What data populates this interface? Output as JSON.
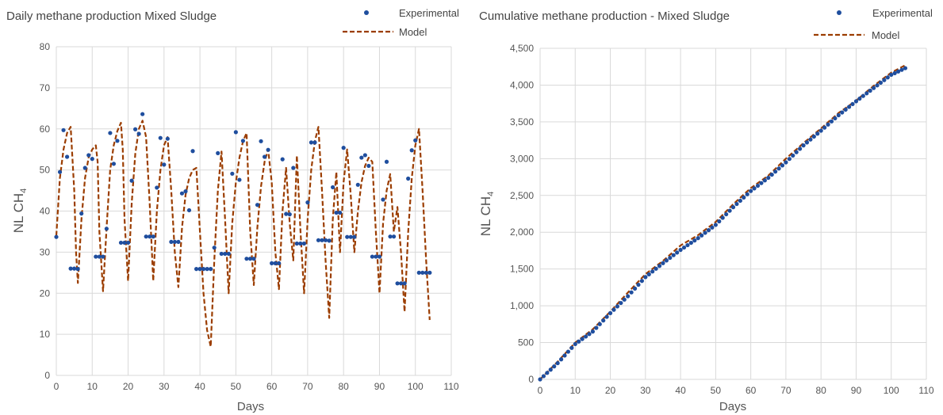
{
  "chart_data": [
    {
      "type": "scatter",
      "title": "Daily methane production Mixed Sludge",
      "xlabel": "Days",
      "ylabel": "NL CH",
      "ylabel_sub": "4",
      "xlim": [
        0,
        110
      ],
      "ylim": [
        0,
        80
      ],
      "xticks": [
        "0",
        "10",
        "20",
        "30",
        "40",
        "50",
        "60",
        "70",
        "80",
        "90",
        "100",
        "110"
      ],
      "yticks": [
        "0",
        "10",
        "20",
        "30",
        "40",
        "50",
        "60",
        "70",
        "80"
      ],
      "grid": true,
      "legend": "top-right",
      "series": [
        {
          "name": "Experimental",
          "kind": "points",
          "color": "#1f4e9e",
          "points": [
            [
              0,
              33.7
            ],
            [
              1,
              49.5
            ],
            [
              2,
              59.7
            ],
            [
              3,
              53.2
            ],
            [
              4,
              26.0
            ],
            [
              5,
              26.0
            ],
            [
              6,
              25.9
            ],
            [
              7,
              39.4
            ],
            [
              8,
              50.5
            ],
            [
              9,
              53.6
            ],
            [
              10,
              52.7
            ],
            [
              11,
              28.9
            ],
            [
              12,
              28.9
            ],
            [
              13,
              28.9
            ],
            [
              14,
              35.7
            ],
            [
              15,
              59.0
            ],
            [
              16,
              51.5
            ],
            [
              17,
              57.1
            ],
            [
              18,
              32.3
            ],
            [
              19,
              32.3
            ],
            [
              20,
              32.3
            ],
            [
              21,
              47.4
            ],
            [
              22,
              59.9
            ],
            [
              23,
              58.8
            ],
            [
              24,
              63.6
            ],
            [
              25,
              33.8
            ],
            [
              26,
              33.8
            ],
            [
              27,
              33.8
            ],
            [
              28,
              45.7
            ],
            [
              29,
              57.8
            ],
            [
              30,
              51.3
            ],
            [
              31,
              57.6
            ],
            [
              32,
              32.5
            ],
            [
              33,
              32.5
            ],
            [
              34,
              32.5
            ],
            [
              35,
              44.3
            ],
            [
              36,
              44.8
            ],
            [
              37,
              40.2
            ],
            [
              38,
              54.6
            ],
            [
              39,
              25.9
            ],
            [
              40,
              25.9
            ],
            [
              41,
              25.9
            ],
            [
              42,
              25.9
            ],
            [
              43,
              25.9
            ],
            [
              44,
              31.1
            ],
            [
              45,
              54.1
            ],
            [
              46,
              29.6
            ],
            [
              47,
              29.6
            ],
            [
              48,
              29.6
            ],
            [
              49,
              49.1
            ],
            [
              50,
              59.2
            ],
            [
              51,
              47.6
            ],
            [
              52,
              57.1
            ],
            [
              53,
              28.4
            ],
            [
              54,
              28.4
            ],
            [
              55,
              28.4
            ],
            [
              56,
              41.5
            ],
            [
              57,
              57.0
            ],
            [
              58,
              53.2
            ],
            [
              59,
              54.9
            ],
            [
              60,
              27.3
            ],
            [
              61,
              27.3
            ],
            [
              62,
              27.3
            ],
            [
              63,
              52.6
            ],
            [
              64,
              39.3
            ],
            [
              65,
              39.2
            ],
            [
              66,
              50.5
            ],
            [
              67,
              32.1
            ],
            [
              68,
              32.1
            ],
            [
              69,
              32.1
            ],
            [
              70,
              42.1
            ],
            [
              71,
              56.7
            ],
            [
              72,
              56.7
            ],
            [
              73,
              32.9
            ],
            [
              74,
              32.9
            ],
            [
              75,
              32.9
            ],
            [
              76,
              32.8
            ],
            [
              77,
              45.8
            ],
            [
              78,
              39.6
            ],
            [
              79,
              39.6
            ],
            [
              80,
              55.4
            ],
            [
              81,
              33.7
            ],
            [
              82,
              33.7
            ],
            [
              83,
              33.7
            ],
            [
              84,
              46.4
            ],
            [
              85,
              53.0
            ],
            [
              86,
              53.6
            ],
            [
              87,
              51.0
            ],
            [
              88,
              28.9
            ],
            [
              89,
              28.9
            ],
            [
              90,
              28.9
            ],
            [
              91,
              42.8
            ],
            [
              92,
              52.0
            ],
            [
              93,
              33.8
            ],
            [
              94,
              33.8
            ],
            [
              95,
              22.4
            ],
            [
              96,
              22.4
            ],
            [
              97,
              22.4
            ],
            [
              98,
              47.9
            ],
            [
              99,
              54.8
            ],
            [
              100,
              57.2
            ],
            [
              101,
              25.0
            ],
            [
              102,
              25.0
            ],
            [
              103,
              25.0
            ],
            [
              104,
              25.0
            ]
          ]
        },
        {
          "name": "Model",
          "kind": "dashed-line",
          "color": "#9b3d00",
          "points": [
            [
              0,
              34
            ],
            [
              1,
              48
            ],
            [
              2,
              55
            ],
            [
              3,
              59
            ],
            [
              4,
              60.5
            ],
            [
              5,
              45
            ],
            [
              5.5,
              30
            ],
            [
              6,
              22.5
            ],
            [
              7,
              38
            ],
            [
              8,
              48
            ],
            [
              9,
              53
            ],
            [
              10,
              55
            ],
            [
              11,
              56
            ],
            [
              11.5,
              52
            ],
            [
              12,
              35
            ],
            [
              13,
              20.5
            ],
            [
              14,
              36
            ],
            [
              15,
              50
            ],
            [
              16,
              56
            ],
            [
              17,
              59.5
            ],
            [
              18,
              61.5
            ],
            [
              18.5,
              55
            ],
            [
              19,
              38
            ],
            [
              20,
              23
            ],
            [
              21,
              42
            ],
            [
              22,
              54
            ],
            [
              23,
              60
            ],
            [
              24,
              62
            ],
            [
              25,
              58
            ],
            [
              26,
              42
            ],
            [
              27,
              23
            ],
            [
              28,
              40
            ],
            [
              29,
              50
            ],
            [
              30,
              56
            ],
            [
              31,
              58
            ],
            [
              32,
              45
            ],
            [
              33,
              30
            ],
            [
              34,
              21.5
            ],
            [
              35,
              36
            ],
            [
              36,
              44
            ],
            [
              37,
              48
            ],
            [
              38,
              50
            ],
            [
              39,
              50.5
            ],
            [
              40,
              35
            ],
            [
              41,
              20
            ],
            [
              42,
              11
            ],
            [
              43,
              7
            ],
            [
              44,
              28
            ],
            [
              45,
              45
            ],
            [
              46,
              54.5
            ],
            [
              47,
              38
            ],
            [
              48,
              20
            ],
            [
              49,
              37
            ],
            [
              50,
              47
            ],
            [
              51,
              53
            ],
            [
              52,
              57
            ],
            [
              53,
              59
            ],
            [
              54,
              35
            ],
            [
              55,
              22
            ],
            [
              56,
              36
            ],
            [
              57,
              46
            ],
            [
              58,
              52
            ],
            [
              59,
              55
            ],
            [
              60,
              47
            ],
            [
              61,
              30
            ],
            [
              62,
              21
            ],
            [
              63,
              40
            ],
            [
              64,
              50.5
            ],
            [
              65,
              37
            ],
            [
              66,
              28
            ],
            [
              67,
              53.5
            ],
            [
              68,
              35
            ],
            [
              69,
              20
            ],
            [
              70,
              38
            ],
            [
              71,
              50
            ],
            [
              72,
              57
            ],
            [
              73,
              60.5
            ],
            [
              74,
              45
            ],
            [
              75,
              28
            ],
            [
              76,
              14
            ],
            [
              77,
              38
            ],
            [
              78,
              49.5
            ],
            [
              79,
              30
            ],
            [
              80,
              47
            ],
            [
              81,
              55
            ],
            [
              82,
              44
            ],
            [
              83,
              30
            ],
            [
              84,
              40
            ],
            [
              85,
              47
            ],
            [
              86,
              51
            ],
            [
              87,
              53
            ],
            [
              88,
              52
            ],
            [
              89,
              35
            ],
            [
              90,
              20
            ],
            [
              91,
              37
            ],
            [
              92,
              45
            ],
            [
              93,
              49
            ],
            [
              94,
              35
            ],
            [
              95,
              41
            ],
            [
              96,
              30
            ],
            [
              97,
              15.5
            ],
            [
              98,
              35
            ],
            [
              99,
              48
            ],
            [
              100,
              56
            ],
            [
              101,
              60
            ],
            [
              102,
              45
            ],
            [
              103,
              28
            ],
            [
              104,
              13.5
            ]
          ]
        }
      ]
    },
    {
      "type": "scatter",
      "title": "Cumulative methane production - Mixed Sludge",
      "xlabel": "Days",
      "ylabel": "NL CH",
      "ylabel_sub": "4",
      "xlim": [
        0,
        110
      ],
      "ylim": [
        0,
        4500
      ],
      "xticks": [
        "0",
        "10",
        "20",
        "30",
        "40",
        "50",
        "60",
        "70",
        "80",
        "90",
        "100",
        "110"
      ],
      "yticks": [
        "0",
        "500",
        "1,000",
        "1,500",
        "2,000",
        "2,500",
        "3,000",
        "3,500",
        "4,000",
        "4,500"
      ],
      "grid": true,
      "legend": "top-right",
      "series": [
        {
          "name": "Experimental",
          "kind": "points",
          "color": "#1f4e9e",
          "points": [
            [
              0,
              0
            ],
            [
              5,
              220
            ],
            [
              10,
              480
            ],
            [
              15,
              650
            ],
            [
              20,
              900
            ],
            [
              25,
              1130
            ],
            [
              30,
              1390
            ],
            [
              35,
              1580
            ],
            [
              40,
              1760
            ],
            [
              45,
              1920
            ],
            [
              50,
              2100
            ],
            [
              55,
              2340
            ],
            [
              60,
              2560
            ],
            [
              65,
              2740
            ],
            [
              70,
              2950
            ],
            [
              75,
              3180
            ],
            [
              80,
              3380
            ],
            [
              85,
              3590
            ],
            [
              90,
              3780
            ],
            [
              95,
              3960
            ],
            [
              100,
              4140
            ],
            [
              104,
              4230
            ]
          ]
        },
        {
          "name": "Model",
          "kind": "dashed-line",
          "color": "#9b3d00",
          "points": [
            [
              0,
              0
            ],
            [
              5,
              240
            ],
            [
              10,
              500
            ],
            [
              15,
              680
            ],
            [
              20,
              920
            ],
            [
              25,
              1180
            ],
            [
              30,
              1430
            ],
            [
              35,
              1610
            ],
            [
              40,
              1820
            ],
            [
              45,
              1960
            ],
            [
              50,
              2140
            ],
            [
              55,
              2380
            ],
            [
              60,
              2600
            ],
            [
              65,
              2770
            ],
            [
              70,
              3000
            ],
            [
              75,
              3210
            ],
            [
              80,
              3410
            ],
            [
              85,
              3620
            ],
            [
              90,
              3790
            ],
            [
              95,
              3990
            ],
            [
              100,
              4170
            ],
            [
              104,
              4270
            ]
          ]
        }
      ]
    }
  ]
}
